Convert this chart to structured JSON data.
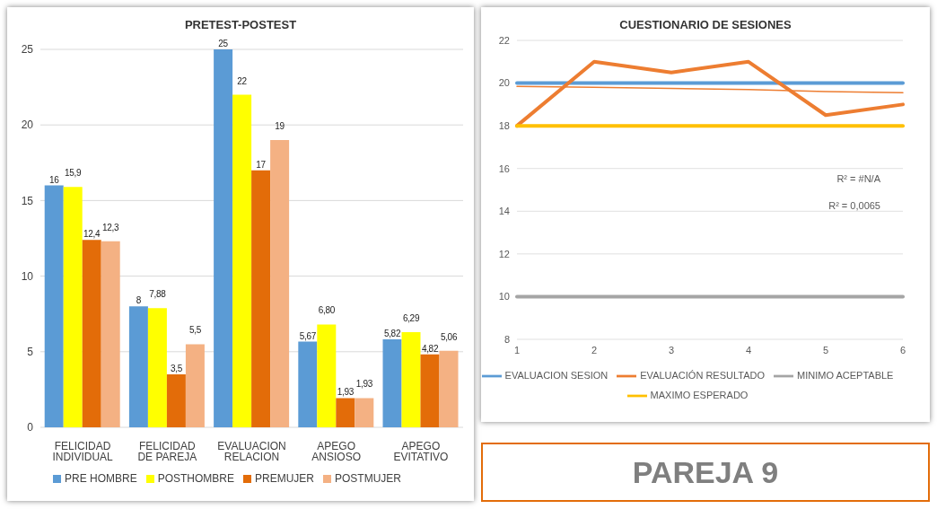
{
  "chart_data": [
    {
      "type": "bar",
      "title": "PRETEST-POSTEST",
      "categories": [
        "FELICIDAD INDIVIDUAL",
        "FELICIDAD DE PAREJA",
        "EVALUACION RELACION",
        "APEGO ANSIOSO",
        "APEGO EVITATIVO"
      ],
      "series": [
        {
          "name": "PRE HOMBRE",
          "color": "#5b9bd5",
          "values": [
            16,
            8,
            25,
            5.67,
            5.82
          ],
          "value_labels": [
            "16",
            "8",
            "25",
            "5,67",
            "5,82"
          ]
        },
        {
          "name": "POSTHOMBRE",
          "color": "#ffff00",
          "values": [
            15.9,
            7.88,
            22,
            6.8,
            6.29
          ],
          "value_labels": [
            "15,9",
            "7,88",
            "22",
            "6,80",
            "6,29"
          ]
        },
        {
          "name": "PREMUJER",
          "color": "#e36c09",
          "values": [
            12.4,
            3.5,
            17,
            1.93,
            4.82
          ],
          "value_labels": [
            "12,4",
            "3,5",
            "17",
            "1,93",
            "4,82"
          ]
        },
        {
          "name": "POSTMUJER",
          "color": "#f4b183",
          "values": [
            12.3,
            5.5,
            19,
            1.93,
            5.06
          ],
          "value_labels": [
            "12,3",
            "5,5",
            "19",
            "1,93",
            "5,06"
          ]
        }
      ],
      "ylim": [
        0,
        25
      ],
      "yticks": [
        0,
        5,
        10,
        15,
        20,
        25
      ],
      "grid": "y",
      "legend": "bottom"
    },
    {
      "type": "line",
      "title": "CUESTIONARIO DE SESIONES",
      "categories": [
        "1",
        "2",
        "3",
        "4",
        "5",
        "6"
      ],
      "series": [
        {
          "name": "EVALUACION SESION",
          "color": "#5b9bd5",
          "values": [
            20,
            20,
            20,
            20,
            20,
            20
          ]
        },
        {
          "name": "EVALUACIÓN RESULTADO",
          "color": "#ed7d31",
          "values": [
            18,
            21,
            20.5,
            21,
            18.5,
            19
          ]
        },
        {
          "name": "MINIMO ACEPTABLE",
          "color": "#a5a5a5",
          "values": [
            10,
            10,
            10,
            10,
            10,
            10
          ]
        },
        {
          "name": "MAXIMO ESPERADO",
          "color": "#ffc000",
          "values": [
            18,
            18,
            18,
            18,
            18,
            18
          ]
        },
        {
          "color": "#ed7d31",
          "values": [
            19.85,
            19.8,
            19.75,
            19.7,
            19.6,
            19.55
          ]
        }
      ],
      "ylim": [
        8,
        22
      ],
      "yticks": [
        8,
        10,
        12,
        14,
        16,
        18,
        20,
        22
      ],
      "grid": "y",
      "legend": "bottom",
      "marker": "none",
      "line_style": "solid",
      "annotations": [
        "R² = #N/A",
        "R² = 0,0065"
      ]
    },
    {
      "type": "other",
      "title": "PAREJA 9"
    }
  ]
}
